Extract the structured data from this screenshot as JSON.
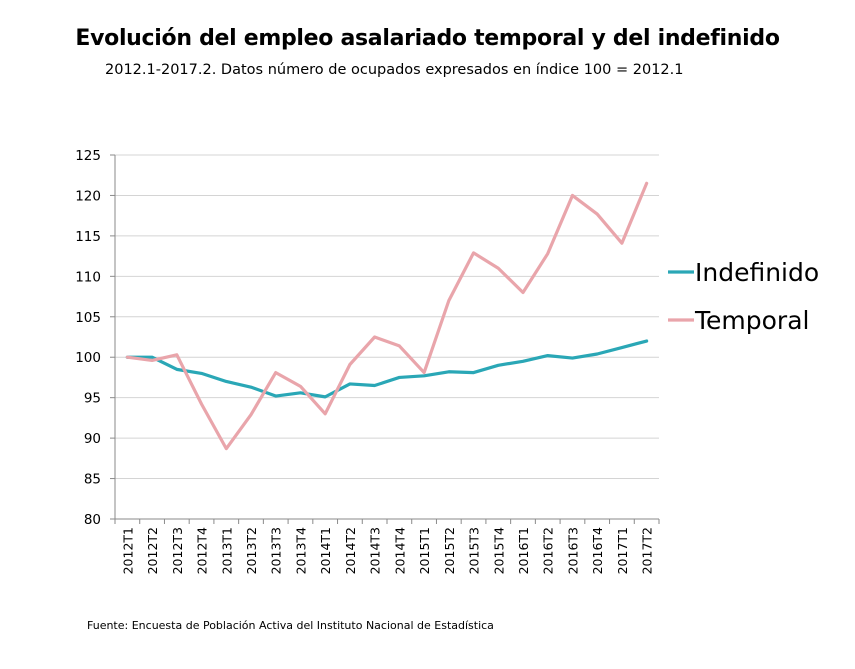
{
  "chart_data": {
    "type": "line",
    "title": "Evolución del empleo asalariado temporal y del indefinido",
    "subtitle": "2012.1-2017.2. Datos número de ocupados expresados en índice 100 = 2012.1",
    "source": "Fuente: Encuesta de Población Activa del Instituto Nacional de Estadística",
    "xlabel": "",
    "ylabel": "",
    "ylim": [
      80,
      125
    ],
    "yticks": [
      80,
      85,
      90,
      95,
      100,
      105,
      110,
      115,
      120,
      125
    ],
    "grid": true,
    "legend_position": "right",
    "categories": [
      "2012T1",
      "2012T2",
      "2012T3",
      "2012T4",
      "2013T1",
      "2013T2",
      "2013T3",
      "2013T4",
      "2014T1",
      "2014T2",
      "2014T3",
      "2014T4",
      "2015T1",
      "2015T2",
      "2015T3",
      "2015T4",
      "2016T1",
      "2016T2",
      "2016T3",
      "2016T4",
      "2017T1",
      "2017T2"
    ],
    "series": [
      {
        "name": "Indefinido",
        "color": "#2aa7b6",
        "values": [
          100,
          100,
          98.5,
          98,
          97,
          96.3,
          95.2,
          95.6,
          95.1,
          96.7,
          96.5,
          97.5,
          97.7,
          98.2,
          98.1,
          99,
          99.5,
          100.2,
          99.9,
          100.4,
          101.2,
          102
        ]
      },
      {
        "name": "Temporal",
        "color": "#e9a5ab",
        "values": [
          100,
          99.6,
          100.3,
          94.2,
          88.7,
          92.9,
          98.1,
          96.4,
          93,
          99.1,
          102.5,
          101.4,
          98.1,
          107,
          112.9,
          111,
          108,
          112.8,
          120,
          117.7,
          114.1,
          121.5
        ]
      }
    ]
  }
}
